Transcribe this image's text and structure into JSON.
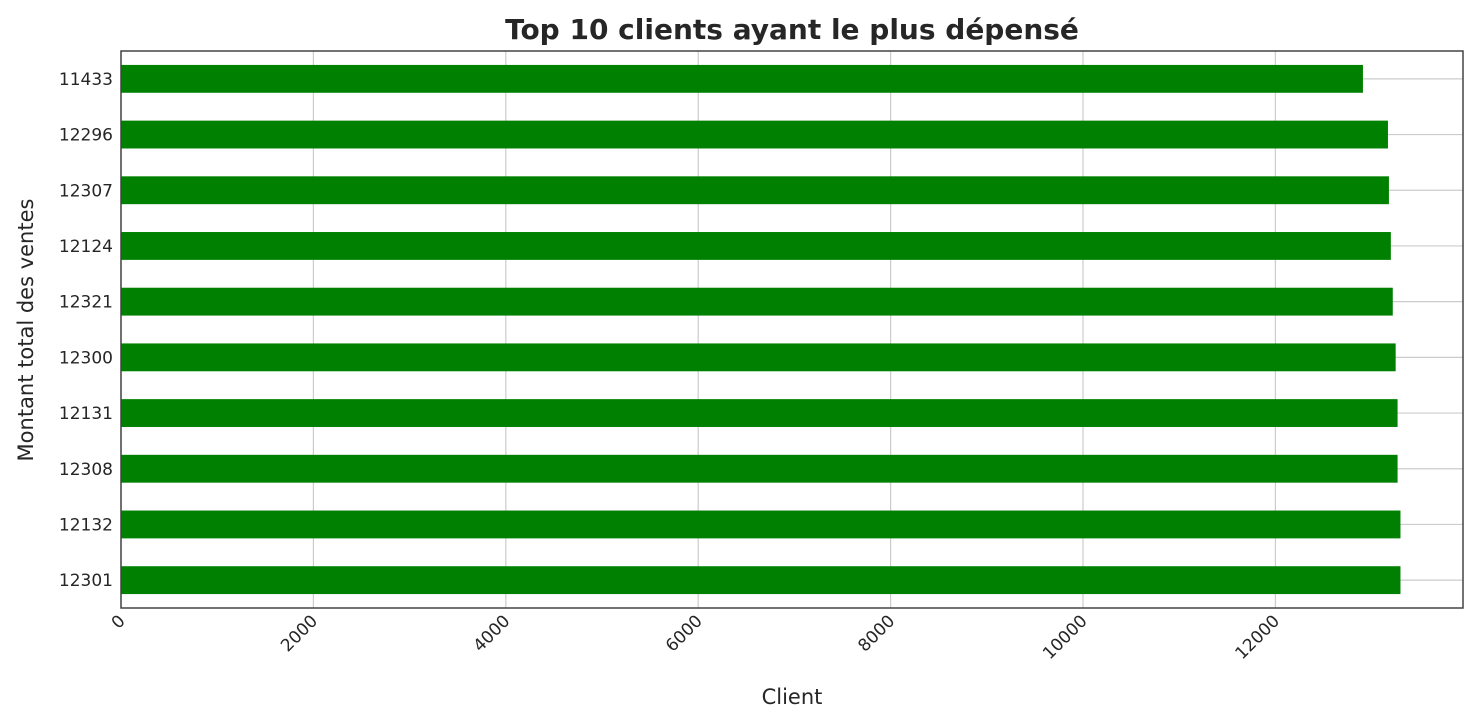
{
  "chart_data": {
    "type": "bar",
    "orientation": "horizontal",
    "title": "Top 10 clients ayant le plus dépensé",
    "xlabel": "Client",
    "ylabel": "Montant total des ventes",
    "categories": [
      "11433",
      "12296",
      "12307",
      "12124",
      "12321",
      "12300",
      "12131",
      "12308",
      "12132",
      "12301"
    ],
    "values": [
      12910,
      13170,
      13180,
      13200,
      13220,
      13250,
      13270,
      13270,
      13300,
      13300
    ],
    "xlim": [
      0,
      13950
    ],
    "xticks": [
      0,
      2000,
      4000,
      6000,
      8000,
      10000,
      12000
    ],
    "xtick_labels": [
      "0",
      "2000",
      "4000",
      "6000",
      "8000",
      "10000",
      "12000"
    ],
    "bar_color": "#008000",
    "grid": true,
    "legend": false
  }
}
